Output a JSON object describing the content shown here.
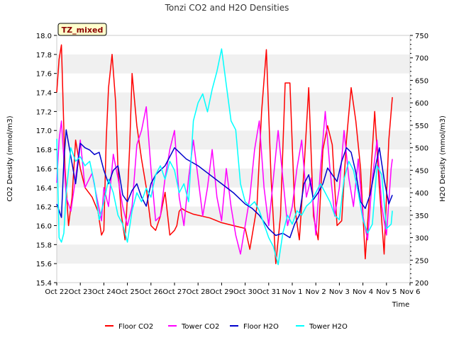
{
  "chart_data": {
    "type": "line",
    "title": "Tonzi CO2 and H2O Densities",
    "site_badge": "TZ_mixed",
    "xlabel": "Time",
    "ylabel_left": "CO2 Density (mmol/m3)",
    "ylabel_right": "H2O Density (mmol/m3)",
    "xlim": [
      0,
      15
    ],
    "ylim_left": [
      15.4,
      18.0
    ],
    "ylim_right": [
      200,
      750
    ],
    "x_ticks": [
      0,
      1,
      2,
      3,
      4,
      5,
      6,
      7,
      8,
      9,
      10,
      11,
      12,
      13,
      14,
      15
    ],
    "x_tick_labels": [
      "Oct 22",
      "Oct 23",
      "Oct 24",
      "Oct 25",
      "Oct 26",
      "Oct 27",
      "Oct 28",
      "Oct 29",
      "Oct 30",
      "Oct 31",
      "Nov 1",
      "Nov 2",
      "Nov 3",
      "Nov 4",
      "Nov 5",
      "Nov 6"
    ],
    "y_ticks_left": [
      15.4,
      15.6,
      15.8,
      16.0,
      16.2,
      16.4,
      16.6,
      16.8,
      17.0,
      17.2,
      17.4,
      17.6,
      17.8,
      18.0
    ],
    "y_tick_labels_left": [
      "15.4",
      "15.6",
      "15.8",
      "16.0",
      "16.2",
      "16.4",
      "16.6",
      "16.8",
      "17.0",
      "17.2",
      "17.4",
      "17.6",
      "17.8",
      "18.0"
    ],
    "y_ticks_right": [
      200,
      250,
      300,
      350,
      400,
      450,
      500,
      550,
      600,
      650,
      700,
      750
    ],
    "y_tick_labels_right": [
      "200",
      "250",
      "300",
      "350",
      "400",
      "450",
      "500",
      "550",
      "600",
      "650",
      "700",
      "750"
    ],
    "grid": "horizontal bands",
    "legend_position": "bottom",
    "series": [
      {
        "name": "Floor CO2",
        "axis": "left",
        "color": "#ff0000",
        "x": [
          0.0,
          0.1,
          0.2,
          0.35,
          0.5,
          0.65,
          0.8,
          1.0,
          1.2,
          1.5,
          1.75,
          1.9,
          2.0,
          2.1,
          2.2,
          2.35,
          2.5,
          2.6,
          2.75,
          2.9,
          3.0,
          3.1,
          3.2,
          3.4,
          3.6,
          3.8,
          4.0,
          4.2,
          4.4,
          4.6,
          4.8,
          5.0,
          5.1,
          5.2,
          5.3,
          5.5,
          5.8,
          6.5,
          7.0,
          7.5,
          8.0,
          8.2,
          8.5,
          8.7,
          8.9,
          9.1,
          9.3,
          9.5,
          9.7,
          9.9,
          10.1,
          10.3,
          10.5,
          10.7,
          10.9,
          11.1,
          11.3,
          11.5,
          11.7,
          11.9,
          12.1,
          12.3,
          12.5,
          12.7,
          12.9,
          13.1,
          13.3,
          13.5,
          13.7,
          13.9,
          14.1,
          14.25
        ],
        "y": [
          17.4,
          17.75,
          17.9,
          16.6,
          16.0,
          16.3,
          16.9,
          16.6,
          16.4,
          16.3,
          16.15,
          15.9,
          15.95,
          16.9,
          17.45,
          17.8,
          17.3,
          16.6,
          16.1,
          15.85,
          16.3,
          16.85,
          17.6,
          17.05,
          16.7,
          16.4,
          16.0,
          15.95,
          16.1,
          16.35,
          15.9,
          15.95,
          16.0,
          16.15,
          16.18,
          16.15,
          16.12,
          16.08,
          16.03,
          16.0,
          15.97,
          15.75,
          16.2,
          17.2,
          17.85,
          16.5,
          15.6,
          16.1,
          17.5,
          17.5,
          16.2,
          15.85,
          16.6,
          17.45,
          16.1,
          15.85,
          16.8,
          17.05,
          16.85,
          16.0,
          16.05,
          16.9,
          17.45,
          17.1,
          16.6,
          15.65,
          16.4,
          17.2,
          16.4,
          15.7,
          16.9,
          17.35
        ]
      },
      {
        "name": "Tower CO2",
        "axis": "left",
        "color": "#ff00ff",
        "x": [
          0.0,
          0.1,
          0.2,
          0.3,
          0.4,
          0.6,
          0.8,
          1.0,
          1.2,
          1.5,
          1.7,
          1.9,
          2.0,
          2.2,
          2.4,
          2.6,
          2.8,
          3.0,
          3.2,
          3.4,
          3.6,
          3.8,
          4.0,
          4.2,
          4.4,
          4.6,
          4.8,
          5.0,
          5.2,
          5.4,
          5.6,
          5.8,
          6.0,
          6.2,
          6.4,
          6.6,
          6.8,
          7.0,
          7.2,
          7.4,
          7.6,
          7.8,
          8.0,
          8.2,
          8.4,
          8.6,
          8.8,
          9.0,
          9.2,
          9.4,
          9.6,
          9.8,
          10.0,
          10.2,
          10.4,
          10.6,
          10.8,
          11.0,
          11.2,
          11.4,
          11.6,
          11.8,
          12.0,
          12.2,
          12.4,
          12.6,
          12.8,
          13.0,
          13.2,
          13.4,
          13.6,
          13.8,
          14.0,
          14.2,
          14.25
        ],
        "y": [
          16.45,
          16.9,
          17.1,
          16.7,
          16.3,
          16.15,
          16.5,
          16.9,
          16.4,
          16.55,
          16.3,
          16.05,
          16.4,
          16.2,
          16.75,
          16.5,
          16.2,
          16.0,
          16.2,
          16.85,
          17.0,
          17.25,
          16.6,
          16.05,
          16.1,
          16.5,
          16.8,
          17.0,
          16.3,
          16.0,
          16.5,
          16.9,
          16.5,
          16.1,
          16.4,
          16.8,
          16.3,
          16.05,
          16.6,
          16.2,
          15.9,
          15.7,
          16.0,
          16.3,
          16.8,
          17.1,
          16.4,
          16.0,
          16.5,
          17.0,
          16.5,
          16.0,
          16.2,
          16.6,
          16.9,
          16.3,
          16.5,
          15.9,
          16.6,
          17.2,
          16.6,
          16.1,
          16.4,
          17.0,
          16.5,
          16.2,
          16.7,
          16.1,
          15.85,
          16.5,
          16.9,
          16.2,
          15.9,
          16.6,
          16.7
        ]
      },
      {
        "name": "Floor H2O",
        "axis": "right",
        "color": "#0000cc",
        "x": [
          0.0,
          0.1,
          0.2,
          0.3,
          0.4,
          0.6,
          0.8,
          1.0,
          1.2,
          1.4,
          1.6,
          1.8,
          2.0,
          2.2,
          2.4,
          2.6,
          2.8,
          3.0,
          3.2,
          3.4,
          3.6,
          3.8,
          4.0,
          4.2,
          4.6,
          5.0,
          5.5,
          6.0,
          6.5,
          7.0,
          7.5,
          8.0,
          8.3,
          8.6,
          9.0,
          9.3,
          9.6,
          9.9,
          10.1,
          10.3,
          10.5,
          10.7,
          10.9,
          11.1,
          11.3,
          11.5,
          11.7,
          11.9,
          12.1,
          12.3,
          12.5,
          12.7,
          12.9,
          13.1,
          13.3,
          13.5,
          13.7,
          13.9,
          14.1,
          14.25
        ],
        "y": [
          375,
          360,
          345,
          470,
          540,
          480,
          420,
          510,
          500,
          495,
          485,
          490,
          450,
          420,
          450,
          460,
          395,
          380,
          405,
          420,
          390,
          370,
          420,
          440,
          460,
          500,
          475,
          460,
          440,
          420,
          400,
          375,
          365,
          350,
          320,
          305,
          310,
          300,
          330,
          350,
          420,
          440,
          385,
          400,
          420,
          455,
          440,
          425,
          470,
          500,
          490,
          445,
          380,
          365,
          395,
          450,
          500,
          430,
          375,
          395
        ]
      },
      {
        "name": "Tower H2O",
        "axis": "right",
        "color": "#00ffff",
        "x": [
          0.0,
          0.1,
          0.2,
          0.3,
          0.4,
          0.6,
          0.8,
          1.0,
          1.2,
          1.4,
          1.6,
          1.8,
          2.0,
          2.2,
          2.4,
          2.6,
          2.8,
          3.0,
          3.2,
          3.4,
          3.6,
          3.8,
          4.0,
          4.2,
          4.4,
          4.6,
          4.8,
          5.0,
          5.2,
          5.4,
          5.6,
          5.8,
          6.0,
          6.2,
          6.4,
          6.6,
          6.8,
          7.0,
          7.2,
          7.4,
          7.6,
          7.8,
          8.0,
          8.2,
          8.4,
          8.6,
          8.8,
          9.0,
          9.2,
          9.4,
          9.6,
          9.8,
          10.0,
          10.2,
          10.4,
          10.6,
          10.8,
          11.0,
          11.2,
          11.4,
          11.6,
          11.8,
          12.0,
          12.2,
          12.4,
          12.6,
          12.8,
          13.0,
          13.2,
          13.4,
          13.6,
          13.8,
          14.0,
          14.2,
          14.25
        ],
        "y": [
          520,
          300,
          290,
          310,
          400,
          500,
          470,
          480,
          460,
          470,
          420,
          340,
          380,
          430,
          400,
          350,
          330,
          290,
          360,
          400,
          380,
          410,
          390,
          440,
          460,
          430,
          470,
          450,
          400,
          420,
          380,
          560,
          600,
          620,
          580,
          630,
          670,
          720,
          640,
          560,
          540,
          420,
          380,
          370,
          380,
          360,
          330,
          300,
          280,
          240,
          310,
          350,
          330,
          360,
          350,
          370,
          380,
          400,
          420,
          400,
          380,
          350,
          340,
          430,
          470,
          450,
          400,
          340,
          310,
          330,
          460,
          440,
          320,
          330,
          360
        ]
      }
    ],
    "legend": [
      "Floor CO2",
      "Tower CO2",
      "Floor H2O",
      "Tower H2O"
    ]
  }
}
